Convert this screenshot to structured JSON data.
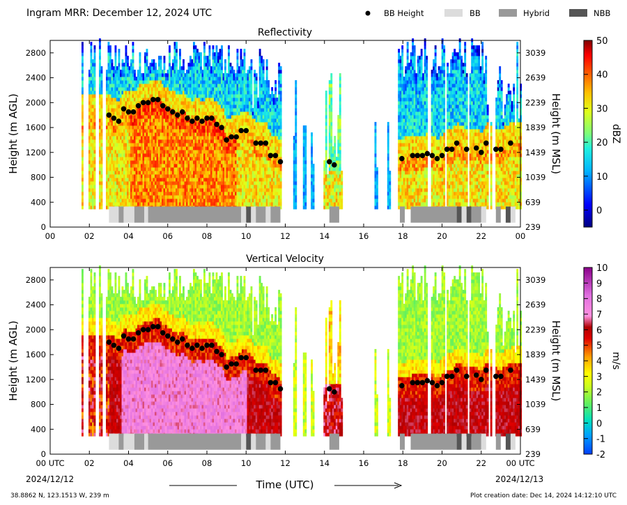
{
  "header": {
    "title": "Ingram MRR:  December 12, 2024 UTC",
    "legend": [
      {
        "label": "BB Height",
        "kind": "dot",
        "color": "#000000"
      },
      {
        "label": "BB",
        "kind": "swatch",
        "color": "#dcdcdc"
      },
      {
        "label": "Hybrid",
        "kind": "swatch",
        "color": "#999999"
      },
      {
        "label": "NBB",
        "kind": "swatch",
        "color": "#555555"
      }
    ]
  },
  "footer": {
    "location": "38.8862 N, 123.1513 W, 239 m",
    "created": "Plot creation date: Dec 14, 2024 14:12:10 UTC",
    "xlabel": "Time (UTC)",
    "start_hour": "00 UTC",
    "start_date": "2024/12/12",
    "end_hour": "00 UTC",
    "end_date": "2024/12/13"
  },
  "chart_data": [
    {
      "type": "heatmap",
      "title": "Reflectivity",
      "ylabel": "Height (m AGL)",
      "ylabel_right": "Height (m MSL)",
      "xlim": [
        0,
        24
      ],
      "ylim": [
        0,
        3000
      ],
      "x_ticks": [
        "00",
        "02",
        "04",
        "06",
        "08",
        "10",
        "12",
        "14",
        "16",
        "18",
        "20",
        "22",
        "00"
      ],
      "y_ticks": [
        0,
        400,
        800,
        1200,
        1600,
        2000,
        2400,
        2800
      ],
      "y_ticks_right": [
        "239",
        "639",
        "1039",
        "1439",
        "1839",
        "2239",
        "2639",
        "3039"
      ],
      "colorbar": {
        "label": "dBZ",
        "range": [
          -5,
          50
        ],
        "ticks": [
          "0",
          "10",
          "20",
          "30",
          "40",
          "50"
        ]
      },
      "bb_height": [
        [
          3.0,
          1800
        ],
        [
          3.25,
          1750
        ],
        [
          3.5,
          1700
        ],
        [
          3.75,
          1900
        ],
        [
          4.0,
          1850
        ],
        [
          4.25,
          1850
        ],
        [
          4.5,
          1950
        ],
        [
          4.75,
          2000
        ],
        [
          5.0,
          2000
        ],
        [
          5.25,
          2050
        ],
        [
          5.5,
          2050
        ],
        [
          5.75,
          1950
        ],
        [
          6.0,
          1900
        ],
        [
          6.25,
          1850
        ],
        [
          6.5,
          1800
        ],
        [
          6.75,
          1850
        ],
        [
          7.0,
          1750
        ],
        [
          7.25,
          1700
        ],
        [
          7.5,
          1750
        ],
        [
          7.75,
          1700
        ],
        [
          8.0,
          1750
        ],
        [
          8.25,
          1750
        ],
        [
          8.5,
          1650
        ],
        [
          8.75,
          1600
        ],
        [
          9.0,
          1400
        ],
        [
          9.25,
          1450
        ],
        [
          9.5,
          1450
        ],
        [
          9.75,
          1550
        ],
        [
          10.0,
          1550
        ],
        [
          10.5,
          1350
        ],
        [
          10.75,
          1350
        ],
        [
          11.0,
          1350
        ],
        [
          11.25,
          1150
        ],
        [
          11.5,
          1150
        ],
        [
          11.75,
          1050
        ],
        [
          14.25,
          1050
        ],
        [
          14.5,
          1000
        ],
        [
          17.95,
          1100
        ],
        [
          18.5,
          1150
        ],
        [
          18.75,
          1150
        ],
        [
          19.0,
          1150
        ],
        [
          19.25,
          1180
        ],
        [
          19.5,
          1150
        ],
        [
          19.75,
          1100
        ],
        [
          20.0,
          1150
        ],
        [
          20.25,
          1250
        ],
        [
          20.5,
          1250
        ],
        [
          20.75,
          1350
        ],
        [
          21.25,
          1250
        ],
        [
          21.75,
          1270
        ],
        [
          22.0,
          1200
        ],
        [
          22.25,
          1350
        ],
        [
          22.75,
          1250
        ],
        [
          23.0,
          1250
        ],
        [
          23.5,
          1350
        ]
      ],
      "bb_class": [
        [
          3.0,
          3.5,
          "BB"
        ],
        [
          3.5,
          3.75,
          "Hybrid"
        ],
        [
          3.75,
          4.3,
          "BB"
        ],
        [
          4.3,
          4.8,
          "Hybrid"
        ],
        [
          4.8,
          5.0,
          "BB"
        ],
        [
          5.0,
          9.75,
          "Hybrid"
        ],
        [
          9.75,
          10.0,
          "BB"
        ],
        [
          10.0,
          10.25,
          "NBB"
        ],
        [
          10.25,
          10.5,
          "BB"
        ],
        [
          10.5,
          11.0,
          "Hybrid"
        ],
        [
          11.0,
          11.25,
          "BB"
        ],
        [
          11.25,
          11.75,
          "Hybrid"
        ],
        [
          14.25,
          14.75,
          "Hybrid"
        ],
        [
          17.85,
          18.1,
          "Hybrid"
        ],
        [
          18.4,
          20.75,
          "Hybrid"
        ],
        [
          20.75,
          21.0,
          "NBB"
        ],
        [
          21.0,
          21.25,
          "BB"
        ],
        [
          21.25,
          21.5,
          "NBB"
        ],
        [
          21.5,
          22.0,
          "Hybrid"
        ],
        [
          22.0,
          22.25,
          "BB"
        ],
        [
          22.75,
          23.0,
          "Hybrid"
        ],
        [
          23.25,
          23.5,
          "NBB"
        ],
        [
          23.5,
          23.75,
          "BB"
        ]
      ]
    },
    {
      "type": "heatmap",
      "title": "Vertical Velocity",
      "ylabel": "Height (m AGL)",
      "ylabel_right": "Height (m MSL)",
      "xlim": [
        0,
        24
      ],
      "ylim": [
        0,
        3000
      ],
      "x_ticks": [
        "00 UTC",
        "02",
        "04",
        "06",
        "08",
        "10",
        "12",
        "14",
        "16",
        "18",
        "20",
        "22",
        "00 UTC"
      ],
      "y_ticks": [
        0,
        400,
        800,
        1200,
        1600,
        2000,
        2400,
        2800
      ],
      "y_ticks_right": [
        "239",
        "639",
        "1039",
        "1439",
        "1839",
        "2239",
        "2639",
        "3039"
      ],
      "colorbar": {
        "label": "m/s",
        "range": [
          -2,
          10
        ],
        "ticks": [
          "-2",
          "-1",
          "0",
          "1",
          "2",
          "3",
          "4",
          "5",
          "6",
          "7",
          "8",
          "9",
          "10"
        ]
      }
    }
  ]
}
